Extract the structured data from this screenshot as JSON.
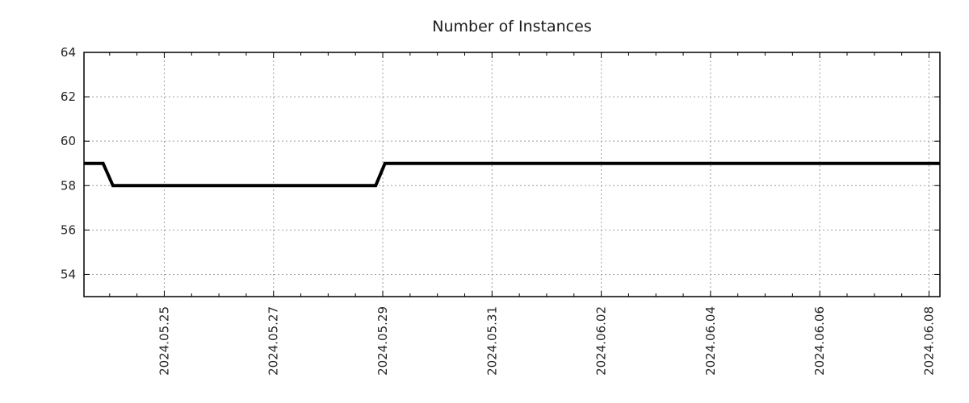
{
  "chart_data": {
    "type": "line",
    "title": "Number of Instances",
    "x_axis": {
      "tick_labels": [
        "2024.05.25",
        "2024.05.27",
        "2024.05.29",
        "2024.05.31",
        "2024.06.02",
        "2024.06.04",
        "2024.06.06",
        "2024.06.08"
      ],
      "tick_positions_days": [
        0,
        2,
        4,
        6,
        8,
        10,
        12,
        14
      ],
      "day_zero_label": "2024.05.25",
      "minor_tick_step_days": 0.5,
      "range_days": [
        -1.47,
        14.2
      ]
    },
    "y_axis": {
      "tick_values": [
        54,
        56,
        58,
        60,
        62,
        64
      ],
      "range": [
        53,
        64
      ]
    },
    "series": [
      {
        "name": "Number of Instances",
        "color": "#000000",
        "points_day_value": [
          [
            -1.47,
            59
          ],
          [
            -1.12,
            59
          ],
          [
            -0.94,
            58
          ],
          [
            3.87,
            58
          ],
          [
            4.04,
            59
          ],
          [
            14.2,
            59
          ]
        ]
      }
    ],
    "readings": [
      {
        "value": 59,
        "from": "left edge (~2024.05.23)",
        "to": "~2024.05.24"
      },
      {
        "value": 58,
        "from": "~2024.05.24",
        "to": "~2024.05.29"
      },
      {
        "value": 59,
        "from": "~2024.05.29",
        "to": "right edge (~2024.06.08)"
      }
    ],
    "style": {
      "background": "#ffffff",
      "border_color": "#000000",
      "grid_on": true,
      "grid_color": "#9e9e9e",
      "line_width": 4,
      "text_color": "#262626",
      "legend": "none"
    }
  }
}
